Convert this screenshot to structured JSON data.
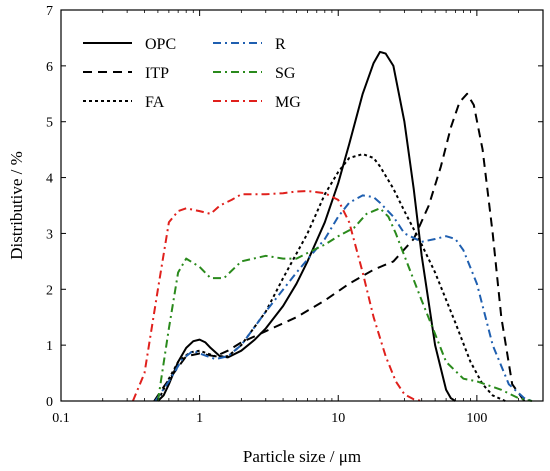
{
  "chart_data": {
    "type": "line",
    "title": "",
    "xlabel": "Particle size / μm",
    "ylabel": "Distributive / %",
    "xscale": "log",
    "xlim": [
      0.1,
      300
    ],
    "ylim": [
      0,
      7
    ],
    "x_ticks": [
      0.1,
      1,
      10,
      100
    ],
    "x_tick_labels": [
      "0.1",
      "1",
      "10",
      "100"
    ],
    "y_ticks": [
      0,
      1,
      2,
      3,
      4,
      5,
      6,
      7
    ],
    "y_tick_labels": [
      "0",
      "1",
      "2",
      "3",
      "4",
      "5",
      "6",
      "7"
    ],
    "grid": false,
    "legend_position": "top-left",
    "series": [
      {
        "name": "OPC",
        "color": "#000000",
        "dash": "solid",
        "x": [
          0.5,
          0.55,
          0.6,
          0.7,
          0.8,
          0.9,
          1.0,
          1.1,
          1.2,
          1.4,
          1.6,
          2.0,
          2.5,
          3,
          4,
          5,
          6,
          8,
          10,
          12,
          15,
          18,
          20,
          22,
          25,
          30,
          35,
          40,
          50,
          60,
          65,
          70
        ],
        "y": [
          0,
          0.1,
          0.3,
          0.7,
          0.95,
          1.07,
          1.1,
          1.05,
          0.95,
          0.8,
          0.78,
          0.9,
          1.1,
          1.3,
          1.7,
          2.1,
          2.5,
          3.2,
          3.9,
          4.6,
          5.5,
          6.05,
          6.25,
          6.22,
          6.0,
          5.0,
          3.8,
          2.6,
          1.0,
          0.2,
          0.05,
          0
        ]
      },
      {
        "name": "ITP",
        "color": "#000000",
        "dash": "dashed",
        "x": [
          0.47,
          0.55,
          0.65,
          0.8,
          1.0,
          1.3,
          1.6,
          2,
          3,
          5,
          8,
          12,
          18,
          25,
          35,
          45,
          55,
          65,
          75,
          85,
          95,
          110,
          130,
          150,
          180,
          220
        ],
        "y": [
          0,
          0.25,
          0.5,
          0.8,
          0.85,
          0.8,
          0.9,
          1.05,
          1.25,
          1.5,
          1.8,
          2.1,
          2.35,
          2.5,
          2.9,
          3.5,
          4.2,
          4.9,
          5.35,
          5.5,
          5.3,
          4.5,
          3.0,
          1.5,
          0.3,
          0
        ]
      },
      {
        "name": "FA",
        "color": "#000000",
        "dash": "dotted",
        "x": [
          0.5,
          0.6,
          0.7,
          0.85,
          1.0,
          1.3,
          1.6,
          2,
          3,
          4,
          6,
          8,
          10,
          12,
          15,
          18,
          20,
          25,
          30,
          40,
          50,
          70,
          90,
          110,
          130,
          160
        ],
        "y": [
          0,
          0.4,
          0.7,
          0.87,
          0.9,
          0.8,
          0.8,
          1.0,
          1.6,
          2.2,
          3.0,
          3.7,
          4.1,
          4.35,
          4.42,
          4.35,
          4.2,
          3.8,
          3.4,
          2.8,
          2.3,
          1.4,
          0.7,
          0.3,
          0.1,
          0
        ]
      },
      {
        "name": "R",
        "color": "#1f5fb0",
        "dash": "dashdot",
        "x": [
          0.48,
          0.6,
          0.75,
          0.9,
          1.0,
          1.3,
          1.6,
          2,
          3,
          5,
          8,
          10,
          12,
          15,
          18,
          20,
          25,
          30,
          40,
          50,
          60,
          70,
          80,
          100,
          130,
          170,
          220,
          250
        ],
        "y": [
          0,
          0.35,
          0.75,
          0.9,
          0.85,
          0.75,
          0.8,
          1.0,
          1.6,
          2.3,
          2.9,
          3.3,
          3.55,
          3.68,
          3.65,
          3.55,
          3.3,
          3.0,
          2.85,
          2.9,
          2.95,
          2.9,
          2.7,
          2.1,
          1.0,
          0.3,
          0.05,
          0
        ]
      },
      {
        "name": "SG",
        "color": "#2a8a1c",
        "dash": "dashdot",
        "x": [
          0.5,
          0.6,
          0.7,
          0.8,
          1.0,
          1.2,
          1.5,
          2,
          3,
          4,
          5,
          6,
          8,
          10,
          13,
          16,
          20,
          23,
          26,
          30,
          40,
          50,
          60,
          80,
          100,
          150,
          200,
          250
        ],
        "y": [
          0,
          1.3,
          2.3,
          2.55,
          2.4,
          2.2,
          2.2,
          2.5,
          2.6,
          2.55,
          2.55,
          2.65,
          2.8,
          2.95,
          3.1,
          3.35,
          3.45,
          3.3,
          3.0,
          2.6,
          1.8,
          1.2,
          0.7,
          0.4,
          0.35,
          0.2,
          0.05,
          0
        ]
      },
      {
        "name": "MG",
        "color": "#e0201c",
        "dash": "dashdot",
        "x": [
          0.33,
          0.4,
          0.5,
          0.6,
          0.7,
          0.8,
          1.0,
          1.2,
          1.4,
          1.7,
          2,
          3,
          4,
          5,
          6,
          8,
          10,
          12,
          15,
          18,
          22,
          26,
          30,
          35,
          40
        ],
        "y": [
          0,
          0.5,
          2.0,
          3.2,
          3.4,
          3.45,
          3.4,
          3.35,
          3.5,
          3.6,
          3.7,
          3.7,
          3.72,
          3.75,
          3.76,
          3.72,
          3.6,
          3.2,
          2.3,
          1.5,
          0.8,
          0.35,
          0.12,
          0.03,
          0
        ]
      }
    ]
  }
}
